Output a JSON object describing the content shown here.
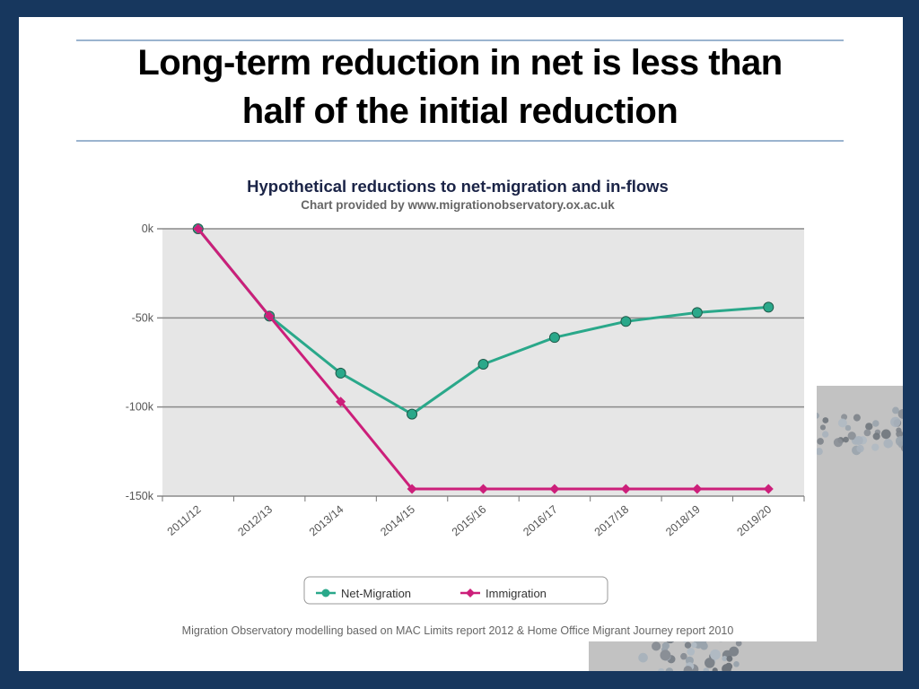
{
  "slide": {
    "title_line1": "Long-term reduction in net is less than",
    "title_line2": "half of the initial reduction"
  },
  "chart_data": {
    "type": "line",
    "title": "Hypothetical reductions to net-migration and in-flows",
    "subtitle": "Chart provided by www.migrationobservatory.ox.ac.uk",
    "xlabel": "",
    "ylabel": "",
    "categories": [
      "2011/12",
      "2012/13",
      "2013/14",
      "2014/15",
      "2015/16",
      "2016/17",
      "2017/18",
      "2018/19",
      "2019/20"
    ],
    "y_ticks": [
      0,
      -50,
      -100,
      -150
    ],
    "y_tick_labels": [
      "0k",
      "-50k",
      "-100k",
      "-150k"
    ],
    "ylim": [
      -150,
      0
    ],
    "units": "thousands",
    "grid": true,
    "legend": "bottom-center",
    "series": [
      {
        "name": "Net-Migration",
        "color": "#2aa88a",
        "marker": "circle",
        "values": [
          0,
          -49,
          -81,
          -104,
          -76,
          -61,
          -52,
          -47,
          -44
        ]
      },
      {
        "name": "Immigration",
        "color": "#cc1f7a",
        "marker": "diamond",
        "values": [
          0,
          -49,
          -97,
          -146,
          -146,
          -146,
          -146,
          -146,
          -146
        ]
      }
    ],
    "source_note": "Migration Observatory modelling based on MAC Limits report 2012 & Home Office Migrant Journey report 2010"
  }
}
